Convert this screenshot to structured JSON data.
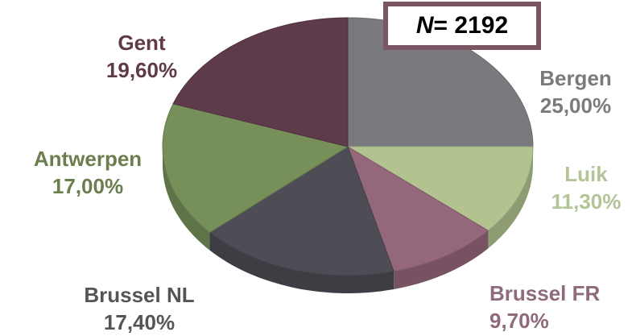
{
  "chart_data": {
    "type": "pie",
    "title": "",
    "n_label": {
      "symbol": "N",
      "rest": " = 2192"
    },
    "slices": [
      {
        "label": "Bergen",
        "value": 25.0,
        "value_text": "25,00%",
        "color": "#7a797e",
        "label_color": "#7b7b7b"
      },
      {
        "label": "Luik",
        "value": 11.3,
        "value_text": "11,30%",
        "color": "#b2c390",
        "label_color": "#b3c497"
      },
      {
        "label": "Brussel FR",
        "value": 9.7,
        "value_text": "9,70%",
        "color": "#94677b",
        "label_color": "#8f6a7c"
      },
      {
        "label": "Brussel NL",
        "value": 17.4,
        "value_text": "17,40%",
        "color": "#4e4c54",
        "label_color": "#555555"
      },
      {
        "label": "Antwerpen",
        "value": 17.0,
        "value_text": "17,00%",
        "color": "#77905a",
        "label_color": "#6b7e4d"
      },
      {
        "label": "Gent",
        "value": 19.6,
        "value_text": "19,60%",
        "color": "#5e3b4b",
        "label_color": "#5e3a4a"
      }
    ]
  }
}
